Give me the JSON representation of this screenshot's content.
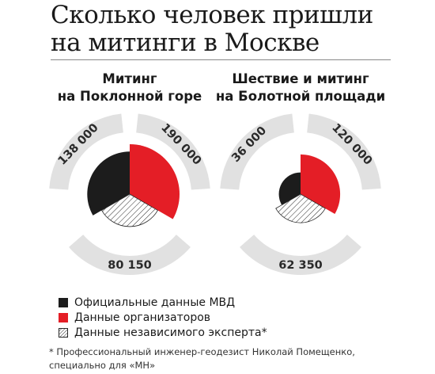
{
  "title_line1": "Сколько человек пришли",
  "title_line2": "на митинги в Москве",
  "colors": {
    "mvd": "#1c1c1c",
    "organizers": "#e41e26",
    "expert_stroke": "#2a2a2a",
    "ring": "#e1e1e1"
  },
  "legend": [
    {
      "key": "mvd",
      "label": "Официальные данные МВД",
      "icon": "black-square-icon"
    },
    {
      "key": "organizers",
      "label": "Данные организаторов",
      "icon": "red-square-icon"
    },
    {
      "key": "expert",
      "label": "Данные независимого эксперта*",
      "icon": "hatched-square-icon"
    }
  ],
  "footnote_line1": "* Профессиональный инженер-геодезист Николай Помещенко,",
  "footnote_line2": "специально для «МН»",
  "chart_data": [
    {
      "type": "pie",
      "title_line1": "Митинг",
      "title_line2": "на Поклонной горе",
      "series": [
        {
          "name": "Официальные данные МВД",
          "value": 138000,
          "label": "138 000"
        },
        {
          "name": "Данные организаторов",
          "value": 190000,
          "label": "190 000"
        },
        {
          "name": "Данные независимого эксперта*",
          "value": 80150,
          "label": "80 150"
        }
      ]
    },
    {
      "type": "pie",
      "title_line1": "Шествие и митинг",
      "title_line2": "на Болотной площади",
      "series": [
        {
          "name": "Официальные данные МВД",
          "value": 36000,
          "label": "36 000"
        },
        {
          "name": "Данные организаторов",
          "value": 120000,
          "label": "120 000"
        },
        {
          "name": "Данные независимого эксперта*",
          "value": 62350,
          "label": "62 350"
        }
      ]
    }
  ]
}
